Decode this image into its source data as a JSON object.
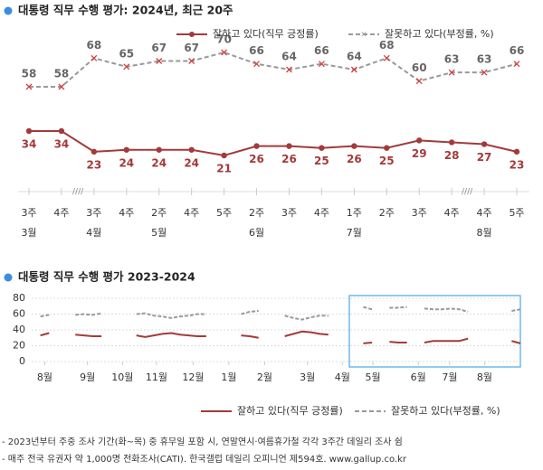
{
  "chart_data": [
    {
      "type": "line",
      "title": "대통령 직무 수행 평가: 2024년, 최근 20주",
      "categories": [
        "3주",
        "4주",
        "3주",
        "4주",
        "2주",
        "4주",
        "5주",
        "2주",
        "3주",
        "4주",
        "1주",
        "2주",
        "3주",
        "4주",
        "4주",
        "5주"
      ],
      "months": [
        "3월",
        null,
        "4월",
        null,
        "5월",
        null,
        null,
        "6월",
        null,
        null,
        "7월",
        null,
        null,
        null,
        "8월",
        null
      ],
      "series": [
        {
          "name": "잘하고 있다(직무 긍정률)",
          "color": "#a33a3a",
          "values": [
            34,
            34,
            23,
            24,
            24,
            24,
            21,
            26,
            26,
            25,
            26,
            25,
            29,
            28,
            27,
            23
          ]
        },
        {
          "name": "잘못하고 있다(부정률, %)",
          "color": "#999999",
          "values": [
            58,
            58,
            68,
            65,
            67,
            67,
            70,
            66,
            64,
            66,
            64,
            68,
            60,
            63,
            63,
            66
          ]
        }
      ]
    },
    {
      "type": "line",
      "title": "대통령 직무 수행 평가 2023-2024",
      "x": [
        0,
        1,
        2,
        3,
        4,
        5,
        6,
        7,
        8,
        9,
        10,
        11,
        12,
        13,
        14,
        15,
        16,
        17,
        18,
        19,
        20,
        21,
        22,
        23,
        24,
        25,
        26,
        27,
        28,
        29,
        30,
        31,
        32,
        33,
        34,
        35,
        36,
        37,
        38,
        39,
        40,
        41,
        42,
        43,
        44,
        45,
        46,
        47,
        48,
        49,
        50,
        51,
        52,
        53,
        54,
        55,
        56
      ],
      "xlim": [
        0,
        56
      ],
      "xticks": [
        {
          "value": 1.5,
          "label": "8월"
        },
        {
          "value": 6.4,
          "label": "9월"
        },
        {
          "value": 10.4,
          "label": "10월"
        },
        {
          "value": 14.3,
          "label": "11월"
        },
        {
          "value": 18.5,
          "label": "12월"
        },
        {
          "value": 22.6,
          "label": "1월"
        },
        {
          "value": 26.7,
          "label": "2월"
        },
        {
          "value": 31.6,
          "label": "3월"
        },
        {
          "value": 35.6,
          "label": "4월"
        },
        {
          "value": 39.1,
          "label": "5월"
        },
        {
          "value": 44.3,
          "label": "6월"
        },
        {
          "value": 47.9,
          "label": "7월"
        },
        {
          "value": 51.9,
          "label": "8월"
        }
      ],
      "ylim": [
        0,
        80
      ],
      "yticks": [
        0,
        20,
        40,
        60,
        80
      ],
      "grid": true,
      "series": [
        {
          "name": "잘하고 있다(직무 긍정률)",
          "color": "#a33a3a",
          "values": [
            null,
            33,
            36,
            null,
            null,
            34,
            33,
            32,
            32,
            null,
            null,
            null,
            33,
            31,
            33,
            35,
            36,
            34,
            33,
            32,
            32,
            null,
            null,
            null,
            33,
            32,
            30,
            null,
            null,
            32,
            35,
            38,
            37,
            35,
            34,
            null,
            null,
            null,
            23,
            24,
            null,
            25,
            24,
            24,
            null,
            24,
            26,
            26,
            26,
            26,
            29,
            null,
            null,
            null,
            null,
            26,
            23
          ]
        },
        {
          "name": "잘못하고 있다(부정률, %)",
          "color": "#999999",
          "values": [
            null,
            57,
            59,
            null,
            null,
            59,
            60,
            59,
            61,
            null,
            null,
            null,
            60,
            61,
            58,
            57,
            55,
            57,
            58,
            60,
            60,
            null,
            null,
            null,
            60,
            63,
            64,
            null,
            null,
            58,
            55,
            53,
            56,
            58,
            58,
            null,
            null,
            null,
            69,
            66,
            null,
            68,
            68,
            69,
            null,
            67,
            66,
            66,
            67,
            66,
            63,
            null,
            null,
            null,
            null,
            64,
            66
          ]
        }
      ]
    }
  ],
  "notes": [
    "- 2023년부터 주중 조사 기간(화~목) 중 휴무일 포함 시, 연말연시·여름휴가철 각각 3주간 데일리 조사 쉼",
    "- 매주 전국 유권자 약 1,000명 전화조사(CATI). 한국갤럽 데일리 오피니언 제594호. www.gallup.co.kr"
  ]
}
